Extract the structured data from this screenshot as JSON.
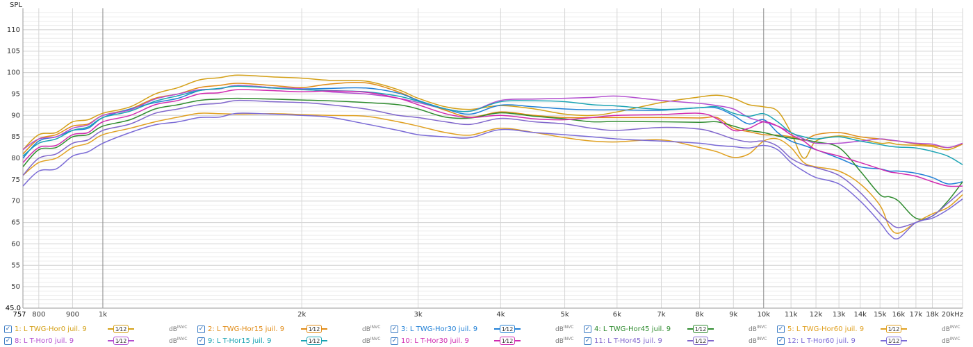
{
  "chart_data": {
    "type": "line",
    "ylabel": "SPL",
    "xunit": "Hz",
    "ylim": [
      45,
      115
    ],
    "xlim": [
      757,
      20000
    ],
    "xscale": "log",
    "y_ticks": [
      "50",
      "55",
      "60",
      "65",
      "70",
      "75",
      "80",
      "85",
      "90",
      "95",
      "100",
      "105",
      "110"
    ],
    "y_min_label": "45.0",
    "x_ticks": [
      {
        "v": 800,
        "l": "800"
      },
      {
        "v": 900,
        "l": "900"
      },
      {
        "v": 1000,
        "l": "1k"
      },
      {
        "v": 2000,
        "l": "2k"
      },
      {
        "v": 3000,
        "l": "3k"
      },
      {
        "v": 4000,
        "l": "4k"
      },
      {
        "v": 5000,
        "l": "5k"
      },
      {
        "v": 6000,
        "l": "6k"
      },
      {
        "v": 7000,
        "l": "7k"
      },
      {
        "v": 8000,
        "l": "8k"
      },
      {
        "v": 9000,
        "l": "9k"
      },
      {
        "v": 10000,
        "l": "10k"
      },
      {
        "v": 11000,
        "l": "11k"
      },
      {
        "v": 12000,
        "l": "12k"
      },
      {
        "v": 13000,
        "l": "13k"
      },
      {
        "v": 14000,
        "l": "14k"
      },
      {
        "v": 15000,
        "l": "15k"
      },
      {
        "v": 16000,
        "l": "16k"
      },
      {
        "v": 17000,
        "l": "17k"
      },
      {
        "v": 18000,
        "l": "18k"
      },
      {
        "v": 20000,
        "l": "20kHz"
      }
    ],
    "x_min_label": "757",
    "x": [
      757,
      800,
      850,
      900,
      950,
      1000,
      1100,
      1200,
      1300,
      1400,
      1500,
      1600,
      1800,
      2000,
      2200,
      2500,
      2800,
      3000,
      3300,
      3600,
      4000,
      4500,
      5000,
      5500,
      6000,
      7000,
      8000,
      8500,
      9000,
      9500,
      10000,
      10500,
      11000,
      11500,
      12000,
      13000,
      14000,
      15000,
      15500,
      16000,
      17000,
      18000,
      19000,
      20000
    ],
    "series": [
      {
        "name": "1: L TWG-Hor0 juil. 9",
        "color": "#d4a017",
        "y": [
          82,
          85.5,
          86,
          88.5,
          89,
          90.5,
          92,
          95,
          96.5,
          98.3,
          98.8,
          99.4,
          99,
          98.7,
          98.2,
          98,
          96,
          94,
          92,
          91.4,
          92.3,
          91.5,
          90.3,
          90,
          90.8,
          93,
          94.3,
          94.7,
          94,
          92.5,
          92,
          91,
          86,
          80,
          84,
          85.2,
          84.5,
          83.5,
          83.6,
          83.2,
          83,
          82.7,
          82,
          83.3
        ]
      },
      {
        "name": "2: L TWG-Hor15 juil. 9",
        "color": "#e08a14",
        "y": [
          81,
          84.5,
          85.5,
          87.5,
          88,
          90,
          91.5,
          94,
          95,
          96.5,
          97,
          97.5,
          97,
          96.5,
          97.3,
          97.6,
          95.5,
          93.5,
          91.2,
          89.6,
          90.8,
          90,
          89.5,
          89.5,
          89.5,
          89.5,
          89.4,
          89.5,
          87,
          86.2,
          85.5,
          85.4,
          85,
          84.2,
          85.5,
          86,
          85,
          84.5,
          84.2,
          84,
          83.3,
          83,
          82.5,
          83.3
        ]
      },
      {
        "name": "3: L TWG-Hor30 juil. 9",
        "color": "#1f7fd6",
        "y": [
          80,
          84,
          85,
          86.5,
          87,
          89.5,
          91.5,
          93,
          94,
          95.8,
          96.2,
          97,
          96.5,
          96.2,
          96.3,
          96.4,
          95.2,
          93.5,
          91.5,
          90.3,
          92.4,
          92,
          91.5,
          91.3,
          91.3,
          91.2,
          91.8,
          91.7,
          90,
          88,
          89,
          86,
          84,
          83,
          82,
          80,
          78,
          77.5,
          77,
          77,
          76.5,
          75.5,
          74,
          74.5
        ]
      },
      {
        "name": "4: L TWG-Hor45 juil. 9",
        "color": "#2e8b2e",
        "y": [
          78,
          82,
          82.5,
          85,
          85.5,
          87.5,
          89,
          91.5,
          92.5,
          93.5,
          93.8,
          94,
          93.8,
          93.6,
          93.4,
          93,
          92.5,
          91.5,
          89.6,
          89.4,
          90.6,
          89.8,
          89.2,
          88.5,
          88.6,
          88.5,
          88.4,
          88.5,
          87.5,
          86.5,
          86,
          85.2,
          84.7,
          84.3,
          83.8,
          82.5,
          77,
          71.5,
          71,
          70,
          66,
          66.5,
          70,
          74.5
        ]
      },
      {
        "name": "5: L TWG-Hor60 juil. 9",
        "color": "#e0a020",
        "y": [
          76,
          79,
          80,
          82.5,
          83.5,
          85.5,
          87,
          88.5,
          89.6,
          90.5,
          90.4,
          90.3,
          90.4,
          90.2,
          90,
          89.8,
          88.5,
          87.5,
          86,
          85.4,
          87,
          86,
          84.8,
          84,
          83.8,
          84.3,
          82.5,
          81.5,
          80.2,
          81,
          84,
          84.5,
          82.5,
          79,
          78,
          77,
          74,
          69,
          64,
          62.5,
          65,
          67,
          68.5,
          71.5
        ]
      },
      {
        "name": "8: L T-Hor0 juil. 9",
        "color": "#b34fd0",
        "y": [
          82,
          84.5,
          85,
          87,
          87.8,
          90,
          91.3,
          93.8,
          95,
          96,
          96.2,
          97,
          96.5,
          96.2,
          95.5,
          95,
          94,
          93,
          91.5,
          91,
          93.5,
          93.8,
          94,
          94.2,
          94.5,
          93.5,
          92.8,
          92.3,
          91.5,
          89.5,
          88.5,
          87.5,
          86,
          84.5,
          83.5,
          83.5,
          84,
          84.5,
          84.3,
          84,
          83.5,
          83.3,
          82.5,
          83.5
        ]
      },
      {
        "name": "9: L T-Hor15 juil. 9",
        "color": "#1aa3b3",
        "y": [
          80.5,
          83.5,
          84.5,
          86.5,
          87.3,
          89.5,
          91,
          93.3,
          94.6,
          95.8,
          96.3,
          96.8,
          96.4,
          96,
          95.8,
          95.5,
          94.5,
          93.3,
          91.5,
          91,
          93.2,
          93.4,
          93.2,
          92.5,
          92.2,
          91.4,
          91.8,
          92,
          90.5,
          89.8,
          90.4,
          88.5,
          86,
          85,
          84.5,
          85,
          84,
          83.2,
          82.8,
          82.6,
          82.4,
          81.6,
          80.5,
          78.5
        ]
      },
      {
        "name": "10: L T-Hor30 juil. 9",
        "color": "#d02ab0",
        "y": [
          79,
          82.5,
          83,
          85.5,
          86,
          88.5,
          90,
          92.5,
          93.5,
          95,
          95.3,
          96,
          95.8,
          95.5,
          95.7,
          95.4,
          94,
          92.5,
          90.4,
          89.5,
          90,
          89.2,
          89,
          89.5,
          90,
          90.2,
          90.5,
          89.2,
          86.5,
          87,
          88.5,
          87.5,
          85.5,
          84,
          82,
          80.5,
          79,
          77.5,
          76.8,
          76.5,
          75.8,
          74.5,
          73.5,
          73.5
        ]
      },
      {
        "name": "11: L T-Hor45 juil. 9",
        "color": "#8066cc",
        "y": [
          76,
          80,
          81,
          83.5,
          84.3,
          86.5,
          88,
          90.5,
          91.5,
          92.5,
          92.8,
          93.5,
          93.2,
          93,
          92.5,
          91.5,
          90,
          89.5,
          88.5,
          87.9,
          89.3,
          88.5,
          88,
          87,
          86.5,
          87.2,
          86.8,
          85.8,
          84.5,
          83.8,
          84,
          82.8,
          80,
          78.5,
          77.8,
          76,
          72,
          67,
          65,
          63.8,
          65,
          66.5,
          69.5,
          72.5
        ]
      },
      {
        "name": "12: L T-Hor60 juil. 9",
        "color": "#7a6ad6",
        "y": [
          73.5,
          77,
          77.5,
          80.5,
          81.5,
          83.5,
          86,
          87.8,
          88.5,
          89.5,
          89.6,
          90.5,
          90.3,
          90,
          89.6,
          88,
          86.5,
          85.5,
          85,
          84.8,
          86.7,
          86,
          85.5,
          85,
          84.5,
          84,
          83.5,
          83,
          82.7,
          82.4,
          83,
          82,
          79,
          77,
          75.5,
          74,
          70,
          65,
          62.2,
          61.3,
          65,
          66,
          68,
          70.5
        ]
      }
    ]
  },
  "legend": {
    "rows": [
      [
        {
          "label": "1: L TWG-Hor0 juil. 9",
          "color": "#d4a017",
          "check": "✓",
          "smooth": "1⁄12",
          "db": "dB",
          "inv": "INVC"
        },
        {
          "label": "2: L TWG-Hor15 juil. 9",
          "color": "#e08a14",
          "check": "✓",
          "smooth": "1⁄12",
          "db": "dB",
          "inv": "INVC"
        },
        {
          "label": "3: L TWG-Hor30 juil. 9",
          "color": "#1f7fd6",
          "check": "✓",
          "smooth": "1⁄12",
          "db": "dB",
          "inv": "INVC"
        },
        {
          "label": "4: L TWG-Hor45 juil. 9",
          "color": "#2e8b2e",
          "check": "✓",
          "smooth": "1⁄12",
          "db": "dB",
          "inv": "INVC"
        },
        {
          "label": "5: L TWG-Hor60 juil. 9",
          "color": "#e0a020",
          "check": "✓",
          "smooth": "1⁄12",
          "db": "dB",
          "inv": "INVC"
        }
      ],
      [
        {
          "label": "8: L T-Hor0 juil. 9",
          "color": "#b34fd0",
          "check": "✓",
          "smooth": "1⁄12",
          "db": "dB",
          "inv": "INVC"
        },
        {
          "label": "9: L T-Hor15 juil. 9",
          "color": "#1aa3b3",
          "check": "✓",
          "smooth": "1⁄12",
          "db": "dB",
          "inv": "INVC"
        },
        {
          "label": "10: L T-Hor30 juil. 9",
          "color": "#d02ab0",
          "check": "✓",
          "smooth": "1⁄12",
          "db": "dB",
          "inv": "INVC"
        },
        {
          "label": "11: L T-Hor45 juil. 9",
          "color": "#8066cc",
          "check": "✓",
          "smooth": "1⁄12",
          "db": "dB",
          "inv": "INVC"
        },
        {
          "label": "12: L T-Hor60 juil. 9",
          "color": "#7a6ad6",
          "check": "✓",
          "smooth": "1⁄12",
          "db": "dB",
          "inv": "INVC"
        }
      ]
    ]
  }
}
